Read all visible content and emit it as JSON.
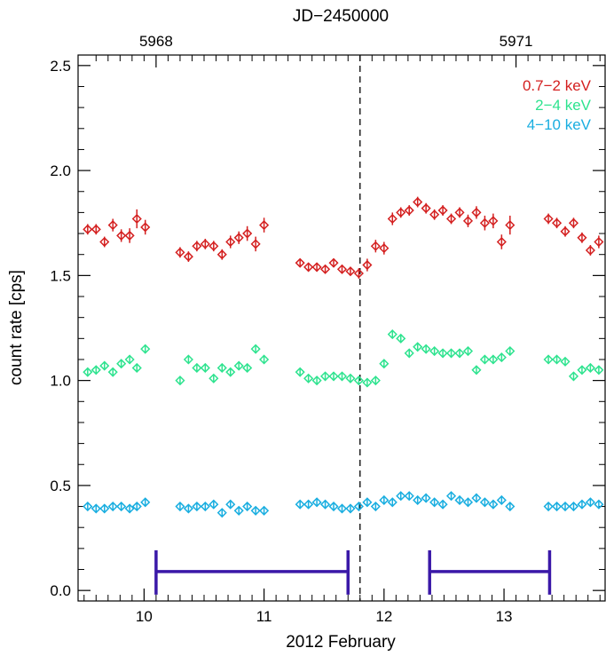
{
  "chart_data": {
    "type": "scatter",
    "title": "",
    "top_axis_title": "JD−2450000",
    "xlabel": "2012 February",
    "ylabel": "count rate [cps]",
    "xlim": [
      9.45,
      13.85
    ],
    "ylim": [
      -0.05,
      2.55
    ],
    "x_ticks": [
      10,
      11,
      12,
      13
    ],
    "x_tick_labels": [
      "10",
      "11",
      "12",
      "13"
    ],
    "y_ticks": [
      0.0,
      0.5,
      1.0,
      1.5,
      2.0,
      2.5
    ],
    "y_tick_labels": [
      "0.0",
      "0.5",
      "1.0",
      "1.5",
      "2.0",
      "2.5"
    ],
    "top_ticks": [
      10.1,
      13.1
    ],
    "top_tick_labels": [
      "5968",
      "5971"
    ],
    "legend": [
      "0.7−2 keV",
      "2−4 keV",
      "4−10 keV"
    ],
    "legend_position": "top-right",
    "vertical_line": {
      "x": 11.8,
      "style": "dashed"
    },
    "x": [
      9.53,
      9.6,
      9.67,
      9.74,
      9.81,
      9.88,
      9.94,
      10.01,
      10.3,
      10.37,
      10.44,
      10.51,
      10.58,
      10.65,
      10.72,
      10.79,
      10.86,
      10.93,
      11.0,
      11.3,
      11.37,
      11.44,
      11.51,
      11.58,
      11.65,
      11.72,
      11.79,
      11.86,
      11.93,
      12.0,
      12.07,
      12.14,
      12.21,
      12.28,
      12.35,
      12.42,
      12.49,
      12.56,
      12.63,
      12.7,
      12.77,
      12.84,
      12.91,
      12.98,
      13.05,
      13.37,
      13.44,
      13.51,
      13.58,
      13.65,
      13.72,
      13.79,
      13.86
    ],
    "series": [
      {
        "name": "0.7−2 keV",
        "color": "#d42020",
        "values": [
          1.72,
          1.72,
          1.66,
          1.74,
          1.69,
          1.69,
          1.77,
          1.73,
          1.61,
          1.59,
          1.64,
          1.65,
          1.64,
          1.6,
          1.66,
          1.68,
          1.7,
          1.65,
          1.74,
          1.56,
          1.54,
          1.54,
          1.53,
          1.56,
          1.53,
          1.52,
          1.51,
          1.55,
          1.64,
          1.63,
          1.77,
          1.8,
          1.81,
          1.85,
          1.82,
          1.79,
          1.81,
          1.77,
          1.8,
          1.76,
          1.8,
          1.75,
          1.76,
          1.66,
          1.74,
          1.77,
          1.75,
          1.71,
          1.75,
          1.68,
          1.62,
          1.66,
          1.67
        ],
        "errors": [
          0.025,
          0.025,
          0.025,
          0.03,
          0.03,
          0.035,
          0.045,
          0.035,
          0.025,
          0.025,
          0.025,
          0.025,
          0.025,
          0.025,
          0.03,
          0.03,
          0.035,
          0.035,
          0.035,
          0.02,
          0.02,
          0.02,
          0.02,
          0.02,
          0.02,
          0.02,
          0.025,
          0.03,
          0.03,
          0.03,
          0.03,
          0.025,
          0.025,
          0.025,
          0.025,
          0.025,
          0.025,
          0.025,
          0.025,
          0.03,
          0.03,
          0.035,
          0.035,
          0.035,
          0.045,
          0.025,
          0.025,
          0.025,
          0.025,
          0.025,
          0.025,
          0.03,
          0.035
        ]
      },
      {
        "name": "2−4 keV",
        "color": "#2ee38f",
        "values": [
          1.04,
          1.05,
          1.07,
          1.04,
          1.08,
          1.1,
          1.06,
          1.15,
          1.0,
          1.1,
          1.06,
          1.06,
          1.01,
          1.06,
          1.04,
          1.07,
          1.06,
          1.15,
          1.1,
          1.04,
          1.01,
          1.0,
          1.02,
          1.02,
          1.02,
          1.01,
          1.0,
          0.99,
          1.0,
          1.08,
          1.22,
          1.2,
          1.13,
          1.16,
          1.15,
          1.14,
          1.13,
          1.13,
          1.13,
          1.14,
          1.05,
          1.1,
          1.1,
          1.11,
          1.14,
          1.1,
          1.1,
          1.09,
          1.02,
          1.05,
          1.06,
          1.05,
          1.13
        ]
      },
      {
        "name": "4−10 keV",
        "color": "#1aaee0",
        "values": [
          0.4,
          0.39,
          0.39,
          0.4,
          0.4,
          0.39,
          0.4,
          0.42,
          0.4,
          0.39,
          0.4,
          0.4,
          0.41,
          0.37,
          0.41,
          0.38,
          0.4,
          0.38,
          0.38,
          0.41,
          0.41,
          0.42,
          0.41,
          0.4,
          0.39,
          0.39,
          0.4,
          0.42,
          0.4,
          0.43,
          0.42,
          0.45,
          0.45,
          0.43,
          0.44,
          0.42,
          0.41,
          0.45,
          0.43,
          0.42,
          0.44,
          0.42,
          0.41,
          0.43,
          0.4,
          0.4,
          0.4,
          0.4,
          0.4,
          0.41,
          0.42,
          0.41,
          0.4
        ]
      }
    ],
    "interval_brackets": [
      {
        "start": 10.1,
        "end": 11.7,
        "level": 0.09,
        "color": "#3a18a8"
      },
      {
        "start": 12.38,
        "end": 13.38,
        "level": 0.09,
        "color": "#3a18a8"
      }
    ]
  }
}
